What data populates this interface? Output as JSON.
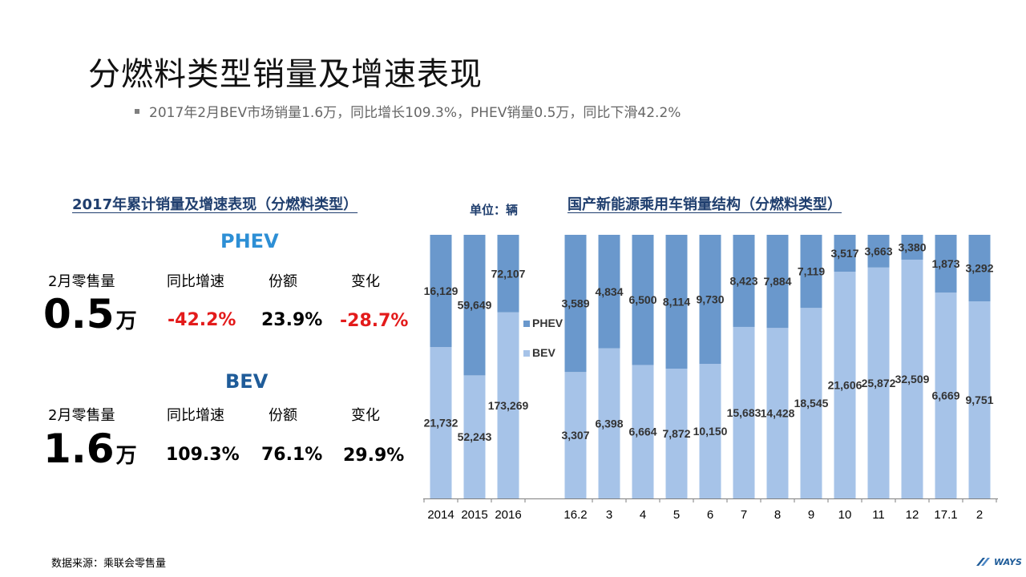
{
  "title": "分燃料类型销量及增速表现",
  "bullet": "2017年2月BEV市场销量1.6万，同比增长109.3%，PHEV销量0.5万，同比下滑42.2%",
  "left_panel": {
    "heading": "2017年累计销量及增速表现（分燃料类型）",
    "phev": {
      "label": "PHEV",
      "headers": [
        "2月零售量",
        "同比增速",
        "份额",
        "变化"
      ],
      "sales_value": "0.5",
      "sales_unit": "万",
      "yoy": "-42.2%",
      "share": "23.9%",
      "change": "-28.7%"
    },
    "bev": {
      "label": "BEV",
      "headers": [
        "2月零售量",
        "同比增速",
        "份额",
        "变化"
      ],
      "sales_value": "1.6",
      "sales_unit": "万",
      "yoy": "109.3%",
      "share": "76.1%",
      "change": "29.9%"
    }
  },
  "right_panel": {
    "unit_label": "单位：辆",
    "heading": "国产新能源乘用车销量结构（分燃料类型）"
  },
  "chart_data": {
    "type": "bar",
    "stacking": "percent",
    "categories": [
      "2014",
      "2015",
      "2016",
      "16.2",
      "3",
      "4",
      "5",
      "6",
      "7",
      "8",
      "9",
      "10",
      "11",
      "12",
      "17.1",
      "2"
    ],
    "series": [
      {
        "name": "BEV",
        "color": "#a6c3e8",
        "values": [
          21732,
          52243,
          173269,
          3307,
          6398,
          6664,
          7872,
          10150,
          15683,
          14428,
          18545,
          21606,
          25872,
          32509,
          6669,
          9751
        ]
      },
      {
        "name": "PHEV",
        "color": "#6a98cc",
        "values": [
          16129,
          59649,
          72107,
          3589,
          4834,
          6500,
          8114,
          9730,
          8423,
          7884,
          7119,
          3517,
          3663,
          3380,
          1873,
          3292
        ]
      }
    ],
    "data_labels": [
      "21,732",
      "52,243",
      "173,269",
      "3,307",
      "6,398",
      "6,664",
      "7,872",
      "10,150",
      "15,683",
      "14,428",
      "18,545",
      "21,606",
      "25,872",
      "32,509",
      "6,669",
      "9,751"
    ],
    "data_labels_phev": [
      "16,129",
      "59,649",
      "72,107",
      "3,589",
      "4,834",
      "6,500",
      "8,114",
      "9,730",
      "8,423",
      "7,884",
      "7,119",
      "3,517",
      "3,663",
      "3,380",
      "1,873",
      "3,292"
    ],
    "legend": [
      "PHEV",
      "BEV"
    ],
    "legend_position": "between-groups",
    "ylim": [
      0,
      1
    ]
  },
  "footer": {
    "source": "数据来源：乘联会零售量",
    "logo_text": "WAYS"
  }
}
